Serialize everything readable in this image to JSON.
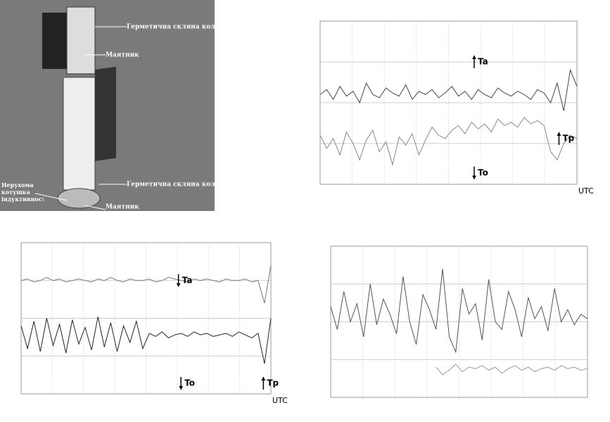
{
  "photo": {
    "labels": [
      "Герметична скляна колба",
      "Маятник",
      "Герметична скляна колба",
      "Нерухома котушка індуктивності",
      "Маятник"
    ]
  },
  "charts": [
    {
      "type": "line",
      "ylim": [
        0,
        100
      ],
      "annotations": [
        "Ta",
        "To",
        "Tp"
      ],
      "x_end_label": "UTC",
      "series": [
        {
          "color": "#444",
          "values": [
            55,
            58,
            52,
            60,
            54,
            57,
            50,
            62,
            55,
            53,
            59,
            56,
            54,
            61,
            52,
            57,
            55,
            58,
            53,
            56,
            60,
            54,
            57,
            52,
            58,
            55,
            53,
            59,
            56,
            54,
            57,
            55,
            52,
            58,
            56,
            50,
            62,
            45,
            70,
            60
          ]
        },
        {
          "color": "#888",
          "values": [
            30,
            22,
            28,
            18,
            32,
            25,
            15,
            27,
            33,
            20,
            26,
            12,
            29,
            24,
            31,
            18,
            27,
            35,
            30,
            28,
            33,
            36,
            31,
            38,
            34,
            37,
            32,
            40,
            36,
            38,
            35,
            41,
            37,
            39,
            36,
            20,
            15,
            25,
            30,
            28
          ]
        }
      ]
    },
    {
      "type": "line",
      "ylim": [
        0,
        100
      ],
      "annotations": [
        "Ta",
        "To",
        "Tp"
      ],
      "x_end_label": "UTC",
      "series": [
        {
          "color": "#777",
          "values": [
            75,
            76,
            74,
            75,
            77,
            75,
            76,
            74,
            75,
            76,
            75,
            74,
            76,
            75,
            77,
            75,
            74,
            76,
            75,
            75,
            76,
            74,
            75,
            77,
            76,
            75,
            74,
            76,
            75,
            76,
            75,
            74,
            76,
            75,
            75,
            76,
            74,
            75,
            60,
            85
          ]
        },
        {
          "color": "#222",
          "values": [
            45,
            30,
            48,
            28,
            50,
            32,
            46,
            27,
            49,
            33,
            44,
            29,
            51,
            31,
            47,
            28,
            45,
            34,
            48,
            30,
            40,
            38,
            41,
            37,
            39,
            40,
            38,
            41,
            39,
            40,
            38,
            39,
            40,
            38,
            41,
            39,
            37,
            40,
            20,
            50
          ]
        }
      ]
    },
    {
      "type": "line",
      "ylim": [
        0,
        100
      ],
      "series": [
        {
          "color": "#555",
          "values": [
            60,
            45,
            70,
            50,
            62,
            40,
            75,
            48,
            65,
            55,
            42,
            80,
            50,
            35,
            68,
            58,
            45,
            85,
            40,
            30,
            72,
            55,
            62,
            38,
            78,
            50,
            45,
            70,
            58,
            40,
            66,
            52,
            60,
            44,
            72,
            50,
            58,
            48,
            55,
            52
          ]
        },
        {
          "color": "#999",
          "values": [
            null,
            null,
            null,
            null,
            null,
            null,
            null,
            null,
            null,
            null,
            null,
            null,
            null,
            null,
            null,
            null,
            20,
            15,
            18,
            22,
            17,
            20,
            19,
            21,
            18,
            20,
            16,
            19,
            21,
            18,
            20,
            17,
            19,
            20,
            18,
            21,
            19,
            20,
            18,
            19
          ]
        }
      ]
    }
  ]
}
